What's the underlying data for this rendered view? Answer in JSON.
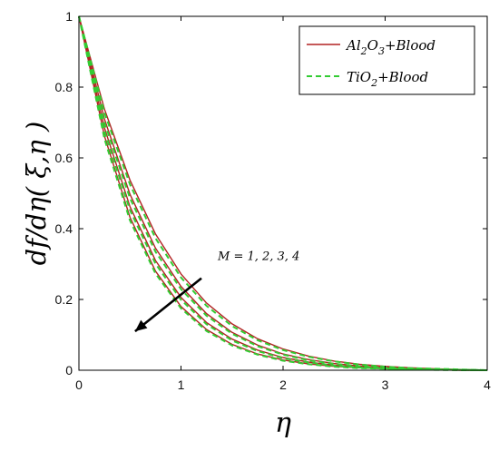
{
  "chart_data": {
    "type": "line",
    "xlabel": "η",
    "ylabel": "df/dη( ξ,η )",
    "xlim": [
      0,
      4
    ],
    "ylim": [
      0,
      1
    ],
    "xticks": [
      "0",
      "1",
      "2",
      "3",
      "4"
    ],
    "yticks": [
      "0",
      "0.2",
      "0.4",
      "0.6",
      "0.8",
      "1"
    ],
    "grid": false,
    "legend": {
      "placement": "top-right",
      "entries": [
        {
          "label": "Al2O3+Blood",
          "parts": [
            [
              "Al",
              ""
            ],
            [
              "2",
              "sub"
            ],
            [
              "O",
              ""
            ],
            [
              "3",
              "sub"
            ],
            [
              "+Blood",
              ""
            ]
          ],
          "color": "#b22222",
          "dash": "solid"
        },
        {
          "label": "TiO2+Blood",
          "parts": [
            [
              "TiO",
              ""
            ],
            [
              "2",
              "sub"
            ],
            [
              "+Blood",
              ""
            ]
          ],
          "color": "#33cc33",
          "dash": "dashed"
        }
      ]
    },
    "annotation": {
      "text": "M = 1, 2, 3, 4",
      "arrow_from": [
        1.2,
        0.26
      ],
      "arrow_to": [
        0.55,
        0.11
      ]
    },
    "x": [
      0,
      0.25,
      0.5,
      0.75,
      1,
      1.25,
      1.5,
      1.75,
      2,
      2.25,
      2.5,
      2.75,
      3,
      3.25,
      3.5,
      3.75,
      4
    ],
    "series": [
      {
        "group": "Al2O3+Blood",
        "values": [
          1,
          0.738,
          0.537,
          0.385,
          0.272,
          0.19,
          0.131,
          0.089,
          0.06,
          0.04,
          0.026,
          0.017,
          0.011,
          0.007,
          0.004,
          0.002,
          0.0
        ]
      },
      {
        "group": "Al2O3+Blood",
        "values": [
          1,
          0.71,
          0.497,
          0.345,
          0.237,
          0.16,
          0.107,
          0.071,
          0.046,
          0.03,
          0.019,
          0.012,
          0.008,
          0.005,
          0.003,
          0.001,
          0.0
        ]
      },
      {
        "group": "Al2O3+Blood",
        "values": [
          1,
          0.685,
          0.462,
          0.31,
          0.206,
          0.135,
          0.088,
          0.057,
          0.036,
          0.023,
          0.014,
          0.009,
          0.005,
          0.003,
          0.002,
          0.001,
          0.0
        ]
      },
      {
        "group": "Al2O3+Blood",
        "values": [
          1,
          0.662,
          0.432,
          0.28,
          0.18,
          0.115,
          0.073,
          0.046,
          0.029,
          0.018,
          0.011,
          0.007,
          0.004,
          0.002,
          0.001,
          0.0,
          0.0
        ]
      },
      {
        "group": "TiO2+Blood",
        "values": [
          1,
          0.728,
          0.525,
          0.373,
          0.262,
          0.182,
          0.125,
          0.085,
          0.057,
          0.038,
          0.025,
          0.016,
          0.01,
          0.006,
          0.004,
          0.002,
          0.0
        ]
      },
      {
        "group": "TiO2+Blood",
        "values": [
          1,
          0.7,
          0.486,
          0.335,
          0.229,
          0.154,
          0.103,
          0.068,
          0.044,
          0.028,
          0.018,
          0.011,
          0.007,
          0.004,
          0.002,
          0.001,
          0.0
        ]
      },
      {
        "group": "TiO2+Blood",
        "values": [
          1,
          0.676,
          0.452,
          0.301,
          0.199,
          0.13,
          0.084,
          0.054,
          0.034,
          0.022,
          0.013,
          0.008,
          0.005,
          0.003,
          0.002,
          0.001,
          0.0
        ]
      },
      {
        "group": "TiO2+Blood",
        "values": [
          1,
          0.654,
          0.423,
          0.273,
          0.175,
          0.111,
          0.07,
          0.044,
          0.027,
          0.017,
          0.01,
          0.006,
          0.004,
          0.002,
          0.001,
          0.0,
          0.0
        ]
      }
    ]
  }
}
